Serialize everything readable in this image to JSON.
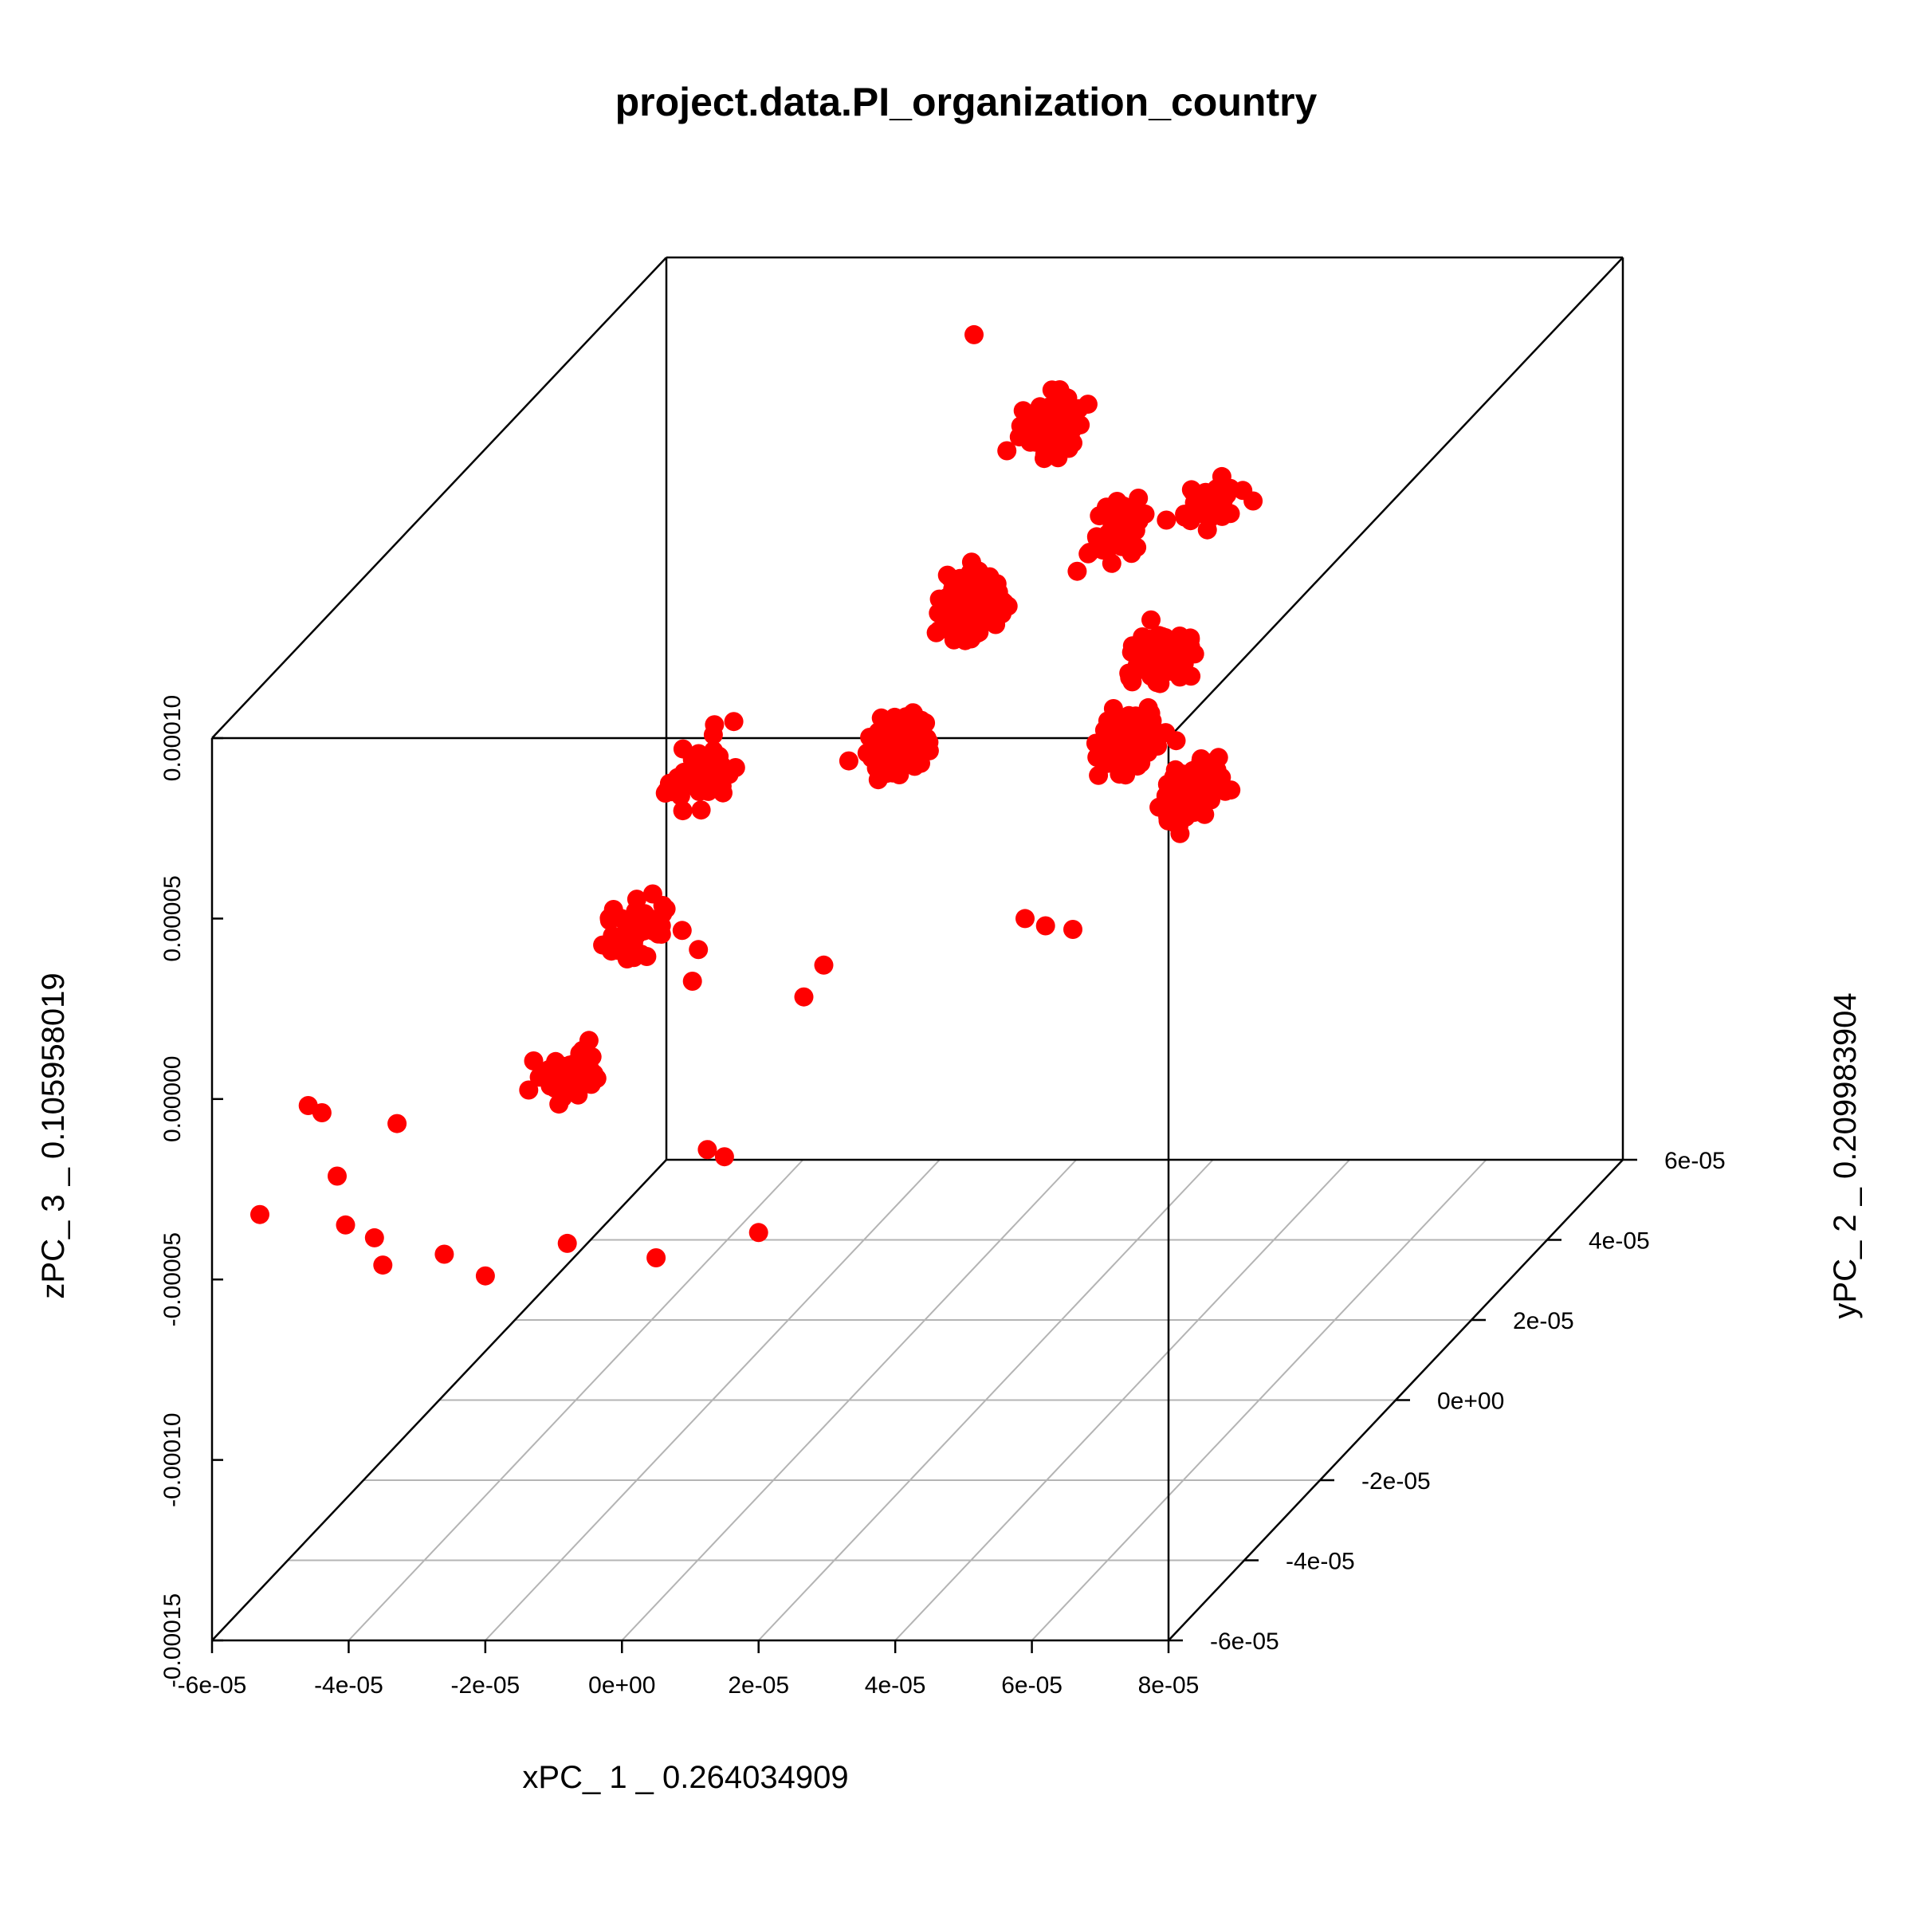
{
  "chart_data": {
    "type": "scatter",
    "subtype": "3d-scatter",
    "title": "project.data.PI_organization_country",
    "xlabel": "xPC_ 1 _ 0.264034909",
    "ylabel": "yPC_ 2 _ 0.209983904",
    "zlabel": "zPC_ 3 _ 0.105958019",
    "x_ticks": [
      "-6e-05",
      "-4e-05",
      "-2e-05",
      "0e+00",
      "2e-05",
      "4e-05",
      "6e-05",
      "8e-05"
    ],
    "y_ticks": [
      "-6e-05",
      "-4e-05",
      "-2e-05",
      "0e+00",
      "2e-05",
      "4e-05",
      "6e-05"
    ],
    "z_ticks": [
      "-0.00015",
      "-0.00010",
      "-0.00005",
      "0.00000",
      "0.00005",
      "0.00010"
    ],
    "xlim": [
      -6e-05,
      8e-05
    ],
    "ylim": [
      -6e-05,
      6e-05
    ],
    "zlim": [
      -0.00015,
      0.0001
    ],
    "point_color": "#ff0000",
    "grid": true,
    "clusters": [
      {
        "x": 1.58e-05,
        "y": -1.5e-05,
        "z": 4.85e-05,
        "n": 90
      },
      {
        "x": 1.8e-05,
        "y": 0.0,
        "z": 7e-05,
        "n": 140
      },
      {
        "x": 1.85e-05,
        "y": 2e-05,
        "z": 9.8e-05,
        "n": 130
      },
      {
        "x": 2.8e-05,
        "y": 2.2e-05,
        "z": 6.8e-05,
        "n": 50
      },
      {
        "x": 4.2e-05,
        "y": -2e-06,
        "z": 3.5e-05,
        "n": 120
      },
      {
        "x": 5.6e-05,
        "y": -1e-05,
        "z": 3e-05,
        "n": 140
      },
      {
        "x": 4.3e-05,
        "y": 5e-06,
        "z": 5e-05,
        "n": 60
      },
      {
        "x": 4.5e-05,
        "y": 1.5e-05,
        "z": 8.2e-05,
        "n": 40
      },
      {
        "x": -1.6e-05,
        "y": -1e-05,
        "z": 3.5e-05,
        "n": 55
      },
      {
        "x": -1.9e-05,
        "y": -2.2e-05,
        "z": 5e-06,
        "n": 55
      },
      {
        "x": -2.1e-05,
        "y": -3.5e-05,
        "z": -2e-05,
        "n": 45
      }
    ],
    "outliers": [
      {
        "x": 7.2e-06,
        "y": 2e-05,
        "z": 0.000123
      },
      {
        "x": 6.2e-05,
        "y": -6e-05,
        "z": 4.8e-05
      },
      {
        "x": 6.6e-05,
        "y": -6e-05,
        "z": 4.7e-05
      },
      {
        "x": 5.9e-05,
        "y": -6e-05,
        "z": 5e-05
      },
      {
        "x": 1e-05,
        "y": -3e-05,
        "z": -5e-06
      },
      {
        "x": 2e-06,
        "y": -4.5e-05,
        "z": 1.6e-05
      },
      {
        "x": -1e-06,
        "y": -3.8e-05,
        "z": 1.7e-05
      },
      {
        "x": 2.4e-05,
        "y": -5e-05,
        "z": 2.6e-05
      },
      {
        "x": 1.5e-05,
        "y": -6e-05,
        "z": -1.6e-05
      },
      {
        "x": 1.25e-05,
        "y": -6e-05,
        "z": -1.4e-05
      },
      {
        "x": -2.6e-05,
        "y": -6e-05,
        "z": -4.3e-05
      },
      {
        "x": -3.9e-05,
        "y": -5.5e-05,
        "z": -4.4e-05
      },
      {
        "x": -2e-05,
        "y": -6e-05,
        "z": -4.9e-05
      },
      {
        "x": -8e-06,
        "y": -6e-05,
        "z": -4e-05
      },
      {
        "x": 5e-06,
        "y": -6e-05,
        "z": -4.4e-05
      },
      {
        "x": -3.5e-05,
        "y": -6e-05,
        "z": -4.6e-05
      },
      {
        "x": 2e-05,
        "y": -6e-05,
        "z": -3.7e-05
      },
      {
        "x": -5e-05,
        "y": -4.5e-05,
        "z": -3.8e-05
      },
      {
        "x": -4.4e-05,
        "y": -4e-05,
        "z": -2.9e-05
      },
      {
        "x": -4.6e-05,
        "y": -5e-05,
        "z": -4.6e-05
      },
      {
        "x": -5.5e-05,
        "y": -4e-05,
        "z": -2.6e-05
      },
      {
        "x": -5.3e-05,
        "y": -6e-05,
        "z": -3.2e-05
      },
      {
        "x": -5.7e-05,
        "y": -4e-05,
        "z": -2.4e-05
      }
    ]
  }
}
